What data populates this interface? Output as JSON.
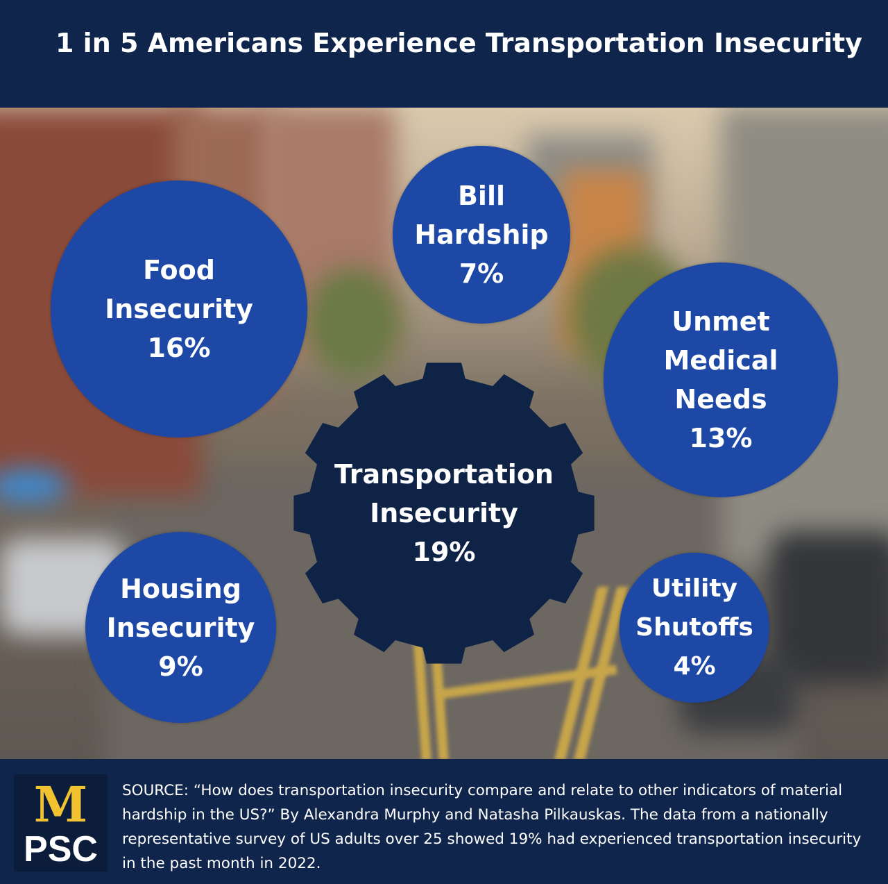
{
  "title": "1 in 5 Americans Experience Transportation Insecurity",
  "center": {
    "lines": [
      "Transportation",
      "Insecurity",
      "19%"
    ]
  },
  "bubbles": {
    "food": {
      "lines": [
        "Food",
        "Insecurity",
        "16%"
      ]
    },
    "bill": {
      "lines": [
        "Bill",
        "Hardship",
        "7%"
      ]
    },
    "medical": {
      "lines": [
        "Unmet",
        "Medical",
        "Needs",
        "13%"
      ]
    },
    "housing": {
      "lines": [
        "Housing",
        "Insecurity",
        "9%"
      ]
    },
    "utility": {
      "lines": [
        "Utility",
        "Shutoffs",
        "4%"
      ]
    }
  },
  "logo": {
    "letter": "M",
    "name": "PSC"
  },
  "source": "SOURCE: “How does transportation insecurity compare and relate to other indicators of material hardship in the US?” By Alexandra Murphy and Natasha Pilkauskas. The data from a nationally representative survey of US adults over 25 showed 19% had experienced transportation insecurity in the past month in 2022.",
  "colors": {
    "navy": "#10254b",
    "bubble_blue": "#1e48a6",
    "gear_navy": "#0f2347",
    "logo_maize": "#f2c230"
  }
}
